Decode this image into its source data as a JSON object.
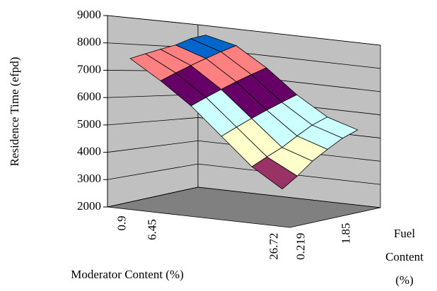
{
  "chart_data": {
    "type": "surface",
    "z_title": "Residence Time (efpd)",
    "x_title": "Moderator Content (%)",
    "y_title": "Fuel Content (%)",
    "categories": [
      "0.9",
      "6.45",
      null,
      null,
      null,
      "26.72"
    ],
    "depth_categories": [
      "0.219",
      null,
      null,
      "1.85",
      null,
      null
    ],
    "values": [
      [
        7500,
        6800,
        6000,
        5000,
        4000,
        3300
      ],
      [
        7700,
        7100,
        6300,
        5300,
        4300,
        3700
      ],
      [
        7900,
        7400,
        6600,
        5600,
        4600,
        4200
      ],
      [
        8100,
        7700,
        6900,
        5900,
        5000,
        4600
      ],
      [
        8400,
        8000,
        7200,
        6200,
        5400,
        5000
      ],
      [
        8600,
        8300,
        7500,
        6500,
        5700,
        5300
      ]
    ],
    "zlim": [
      2000,
      9000
    ],
    "zticks": [
      2000,
      3000,
      4000,
      5000,
      6000,
      7000,
      8000,
      9000
    ],
    "band_colors": [
      "#993366",
      "#993366",
      "#ffffcc",
      "#ccffff",
      "#660066",
      "#ff8080",
      "#0066cc"
    ],
    "grid": true
  }
}
